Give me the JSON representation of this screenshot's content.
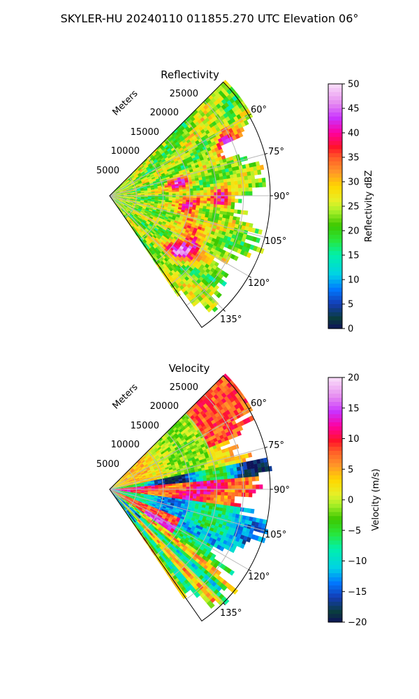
{
  "figure": {
    "suptitle": "SKYLER-HU  20240110  011855.270 UTC Elevation 06°"
  },
  "chart_data": [
    {
      "type": "heatmap",
      "title": "Reflectivity",
      "radial_label": "Meters",
      "range_ticks": [
        5000,
        10000,
        15000,
        20000,
        25000
      ],
      "range_tick_labels": [
        "5000",
        "10000",
        "15000",
        "20000",
        "25000"
      ],
      "azimuth_ticks": [
        60,
        75,
        90,
        105,
        120,
        135
      ],
      "azimuth_tick_labels": [
        "60°",
        "75°",
        "90°",
        "105°",
        "120°",
        "135°"
      ],
      "azimuth_range": [
        45,
        145
      ],
      "range_max": 30000,
      "colorbar": {
        "label": "Reflectivity dBZ",
        "range": [
          0,
          50
        ],
        "ticks": [
          0,
          5,
          10,
          15,
          20,
          25,
          30,
          35,
          40,
          45,
          50
        ],
        "tick_labels": [
          "0",
          "5",
          "10",
          "15",
          "20",
          "25",
          "30",
          "35",
          "40",
          "45",
          "50"
        ]
      },
      "grid": true
    },
    {
      "type": "heatmap",
      "title": "Velocity",
      "radial_label": "Meters",
      "range_ticks": [
        5000,
        10000,
        15000,
        20000,
        25000
      ],
      "range_tick_labels": [
        "5000",
        "10000",
        "15000",
        "20000",
        "25000"
      ],
      "azimuth_ticks": [
        60,
        75,
        90,
        105,
        120,
        135
      ],
      "azimuth_tick_labels": [
        "60°",
        "75°",
        "90°",
        "105°",
        "120°",
        "135°"
      ],
      "azimuth_range": [
        45,
        145
      ],
      "range_max": 30000,
      "colorbar": {
        "label": "Velocity (m/s)",
        "range": [
          -20,
          20
        ],
        "ticks": [
          -20,
          -15,
          -10,
          -5,
          0,
          5,
          10,
          15,
          20
        ],
        "tick_labels": [
          "−20",
          "−15",
          "−10",
          "−5",
          "0",
          "5",
          "10",
          "15",
          "20"
        ]
      },
      "grid": true
    }
  ]
}
